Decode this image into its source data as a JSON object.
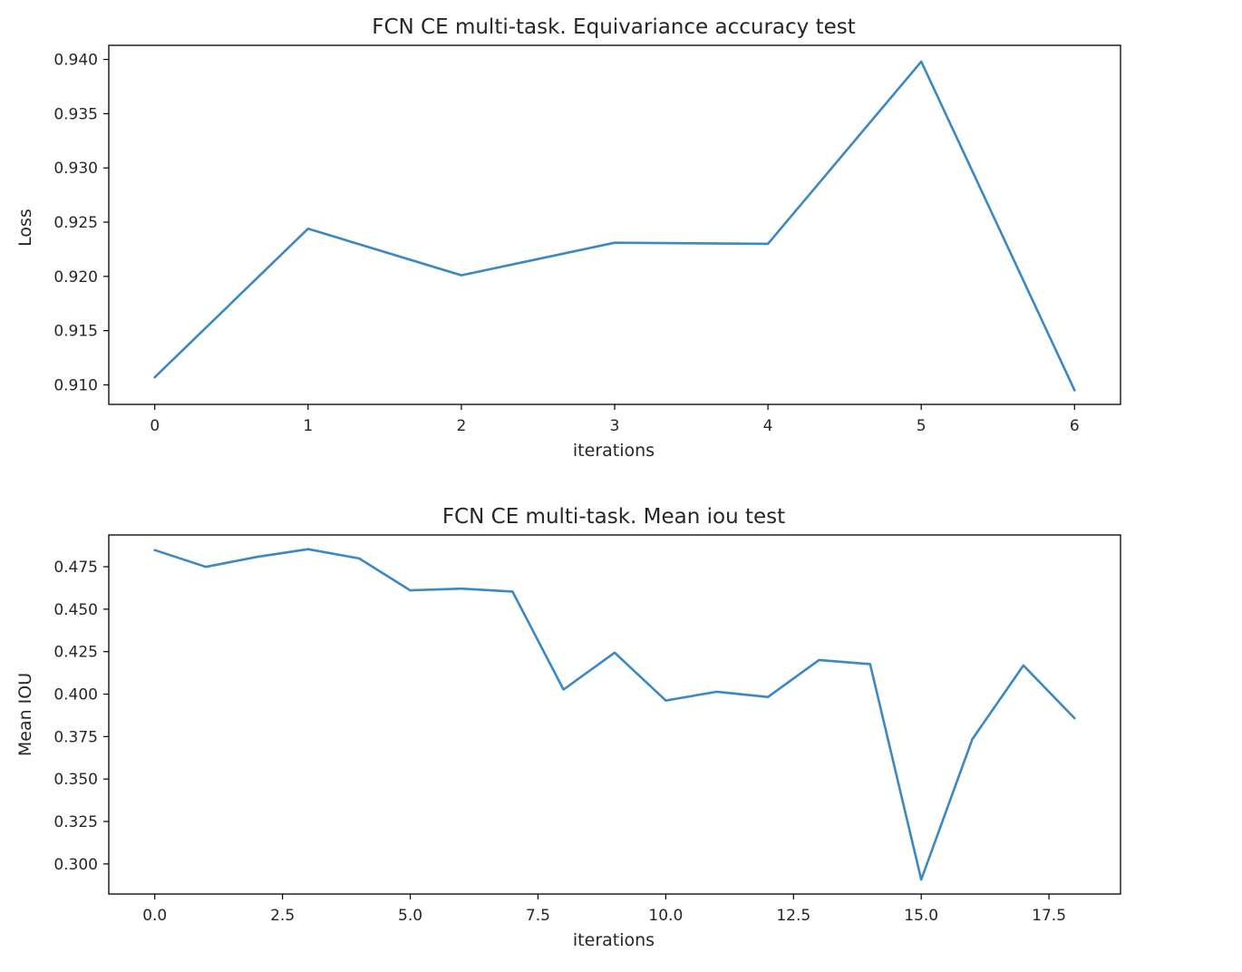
{
  "chart_data": [
    {
      "type": "line",
      "title": "FCN CE multi-task. Equivariance accuracy test",
      "xlabel": "iterations",
      "ylabel": "Loss",
      "x": [
        0,
        1,
        2,
        3,
        4,
        5,
        6
      ],
      "series": [
        {
          "values": [
            0.9107,
            0.9244,
            0.9201,
            0.9231,
            0.923,
            0.9398,
            0.9095
          ]
        }
      ],
      "xlim": [
        -0.3,
        6.3
      ],
      "ylim": [
        0.9082,
        0.9413
      ],
      "xticks": [
        0,
        1,
        2,
        3,
        4,
        5,
        6
      ],
      "xtick_labels": [
        "0",
        "1",
        "2",
        "3",
        "4",
        "5",
        "6"
      ],
      "yticks": [
        0.91,
        0.915,
        0.92,
        0.925,
        0.93,
        0.935,
        0.94
      ],
      "ytick_labels": [
        "0.910",
        "0.915",
        "0.920",
        "0.925",
        "0.930",
        "0.935",
        "0.940"
      ],
      "grid": false,
      "line_color": "#3a88c4"
    },
    {
      "type": "line",
      "title": "FCN CE multi-task. Mean iou test",
      "xlabel": "iterations",
      "ylabel": "Mean IOU",
      "x": [
        0,
        1,
        2,
        3,
        4,
        5,
        6,
        7,
        8,
        9,
        10,
        11,
        12,
        13,
        14,
        15,
        16,
        17,
        18
      ],
      "series": [
        {
          "values": [
            0.4848,
            0.4749,
            0.4808,
            0.4853,
            0.4799,
            0.4611,
            0.4621,
            0.4604,
            0.4027,
            0.4244,
            0.3962,
            0.4014,
            0.3983,
            0.4201,
            0.4177,
            0.2908,
            0.3734,
            0.4169,
            0.3858
          ]
        }
      ],
      "xlim": [
        -0.9,
        18.9
      ],
      "ylim": [
        0.2823,
        0.4937
      ],
      "xticks": [
        0,
        2.5,
        5,
        7.5,
        10,
        12.5,
        15,
        17.5
      ],
      "xtick_labels": [
        "0.0",
        "2.5",
        "5.0",
        "7.5",
        "10.0",
        "12.5",
        "15.0",
        "17.5"
      ],
      "yticks": [
        0.3,
        0.325,
        0.35,
        0.375,
        0.4,
        0.425,
        0.45,
        0.475
      ],
      "ytick_labels": [
        "0.300",
        "0.325",
        "0.350",
        "0.375",
        "0.400",
        "0.425",
        "0.450",
        "0.475"
      ],
      "grid": false,
      "line_color": "#3a88c4"
    }
  ]
}
